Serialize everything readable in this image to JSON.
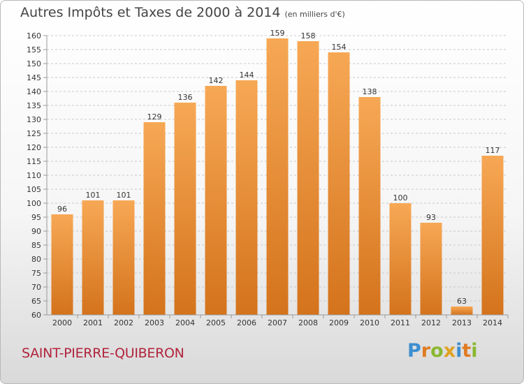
{
  "title": "Autres Impôts et Taxes de 2000 à 2014",
  "unit": "(en milliers d'€)",
  "commune": "SAINT-PIERRE-QUIBERON",
  "logo": {
    "text": "Proxiti",
    "letters": [
      {
        "ch": "P",
        "color": "#3d8fd1"
      },
      {
        "ch": "r",
        "color": "#e07b22"
      },
      {
        "ch": "o",
        "color": "#8ab832"
      },
      {
        "ch": "x",
        "color": "#e0a020"
      },
      {
        "ch": "i",
        "color": "#3d8fd1"
      },
      {
        "ch": "t",
        "color": "#e07b22"
      },
      {
        "ch": "i",
        "color": "#8ab832"
      }
    ]
  },
  "colors": {
    "bar_top": "#f7a855",
    "bar_bottom": "#d4731c",
    "grid": "#c8c8c8"
  },
  "chart_data": {
    "type": "bar",
    "title": "Autres Impôts et Taxes de 2000 à 2014",
    "ylabel": "(en milliers d'€)",
    "categories": [
      "2000",
      "2001",
      "2002",
      "2003",
      "2004",
      "2005",
      "2006",
      "2007",
      "2008",
      "2009",
      "2010",
      "2011",
      "2012",
      "2013",
      "2014"
    ],
    "values": [
      96,
      101,
      101,
      129,
      136,
      142,
      144,
      159,
      158,
      154,
      138,
      100,
      93,
      63,
      117
    ],
    "ylim": [
      60,
      160
    ],
    "yticks": [
      60,
      65,
      70,
      75,
      80,
      85,
      90,
      95,
      100,
      105,
      110,
      115,
      120,
      125,
      130,
      135,
      140,
      145,
      150,
      155,
      160
    ],
    "grid": "dashed horizontal",
    "data_labels": true
  }
}
